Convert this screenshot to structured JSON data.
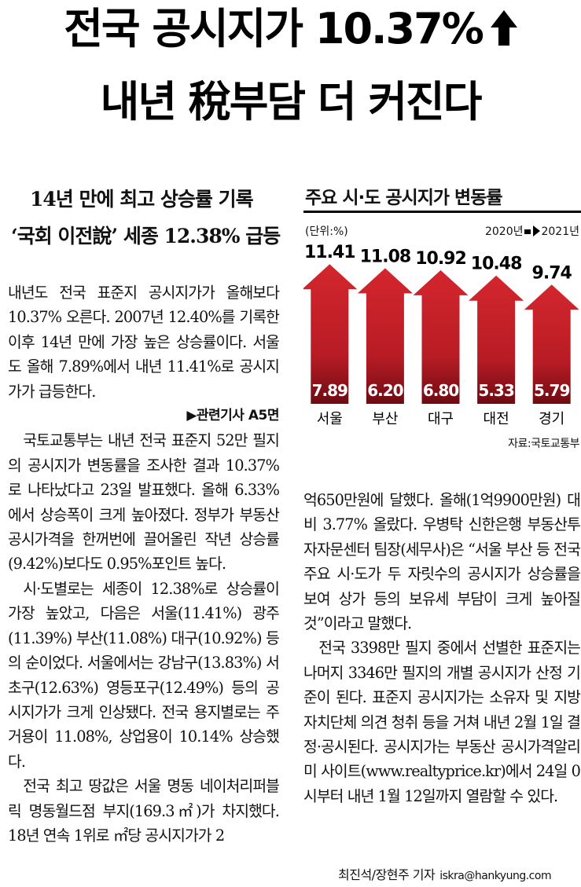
{
  "headline": {
    "line1": "전국 공시지가 10.37%",
    "line2": "내년 稅부담 더 커진다"
  },
  "subheads": [
    "14년 만에 최고 상승률 기록",
    "‘국회 이전說’ 세종 12.38% 급등"
  ],
  "article": {
    "lead": "내년도 전국 표준지 공시지가가 올해보다 10.37% 오른다. 2007년 12.40%를 기록한 이후 14년 만에 가장 높은 상승률이다. 서울도 올해 7.89%에서 내년 11.41%로 공시지가가 급등한다.",
    "related": "▶관련기사 A5면",
    "p1": "국토교통부는 내년 전국 표준지 52만 필지의 공시지가 변동률을 조사한 결과 10.37%로 나타났다고 23일 발표했다. 올해 6.33%에서 상승폭이 크게 높아졌다. 정부가 부동산 공시가격을 한꺼번에 끌어올린 작년 상승률(9.42%)보다도 0.95%포인트 높다.",
    "p2": "시·도별로는 세종이 12.38%로 상승률이 가장 높았고, 다음은 서울(11.41%) 광주(11.39%) 부산(11.08%) 대구(10.92%) 등의 순이었다. 서울에서는 강남구(13.83%) 서초구(12.63%) 영등포구(12.49%) 등의 공시지가가 크게 인상됐다. 전국 용지별로는 주거용이 11.08%, 상업용이 10.14% 상승했다.",
    "p3": "전국 최고 땅값은 서울 명동 네이처리퍼블릭 명동월드점 부지(169.3㎡)가 차지했다. 18년 연속 1위로 ㎡당 공시지가가 2",
    "p3_cont": "억650만원에 달했다. 올해(1억9900만원) 대비 3.77% 올랐다. 우병탁 신한은행 부동산투자자문센터 팀장(세무사)은 “서울 부산 등 전국 주요 시·도가 두 자릿수의 공시지가 상승률을 보여 상가 등의 보유세 부담이 크게 높아질 것”이라고 말했다.",
    "p4": "전국 3398만 필지 중에서 선별한 표준지는 나머지 3346만 필지의 개별 공시지가 산정 기준이 된다. 표준지 공시지가는 소유자 및 지방자치단체 의견 청취 등을 거쳐 내년 2월 1일 결정·공시된다. 공시지가는 부동산 공시가격알리미 사이트(www.realtyprice.kr)에서 24일 0시부터 내년 1월 12일까지 열람할 수 있다."
  },
  "byline": {
    "names": "최진석/장현주 기자",
    "email": "iskra@hankyung.com"
  },
  "chart_data": {
    "type": "bar",
    "title": "주요 시·도 공시지가 변동률",
    "unit": "(단위:%)",
    "legend_from": "2020년",
    "legend_to": "2021년",
    "categories": [
      "서울",
      "부산",
      "대구",
      "대전",
      "경기"
    ],
    "series": [
      {
        "name": "2020년",
        "values": [
          7.89,
          6.2,
          6.8,
          5.33,
          5.79
        ]
      },
      {
        "name": "2021년",
        "values": [
          11.41,
          11.08,
          10.92,
          10.48,
          9.74
        ]
      }
    ],
    "value_labels_2020": [
      "7.89",
      "6.20",
      "6.80",
      "5.33",
      "5.79"
    ],
    "value_labels_2021": [
      "11.41",
      "11.08",
      "10.92",
      "10.48",
      "9.74"
    ],
    "source": "자료:국토교통부",
    "ylim": [
      0,
      12
    ],
    "colors": {
      "arrow": "#c8232c",
      "arrow_dark": "#7a0d14",
      "label": "#ffffff"
    }
  }
}
